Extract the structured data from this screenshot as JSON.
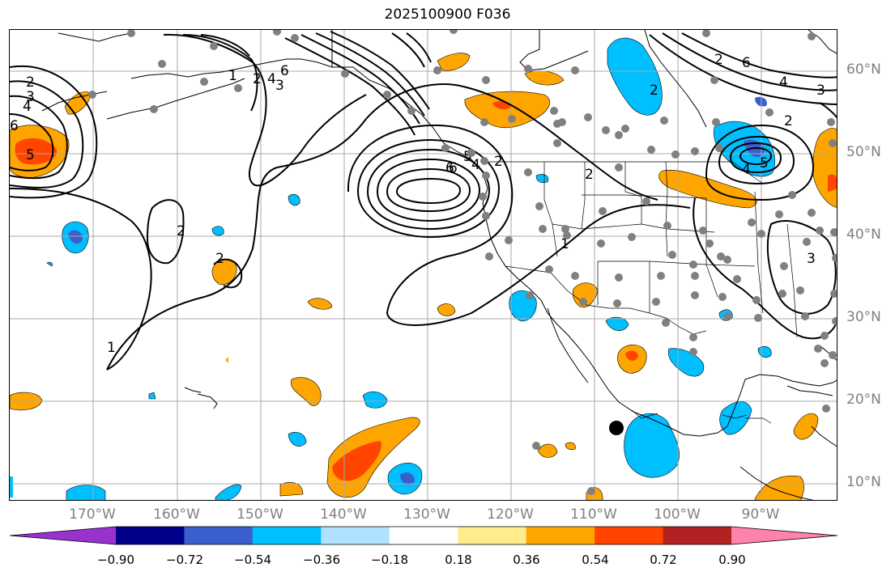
{
  "title": "2025100900 F036",
  "longitude_labels": [
    "170°W",
    "160°W",
    "150°W",
    "140°W",
    "130°W",
    "120°W",
    "110°W",
    "100°W",
    "90°W"
  ],
  "latitude_labels": [
    "60°N",
    "50°N",
    "40°N",
    "30°N",
    "20°N",
    "10°N"
  ],
  "colorbar": {
    "ticks": [
      "−0.90",
      "−0.72",
      "−0.54",
      "−0.36",
      "−0.18",
      "0.18",
      "0.36",
      "0.54",
      "0.72",
      "0.90"
    ],
    "colors": [
      "#9932cc",
      "#00008b",
      "#3a5fcd",
      "#00bfff",
      "#b0e2ff",
      "#ffffff",
      "#ffec8b",
      "#ffa500",
      "#ff4500",
      "#b22222",
      "#ff82ab"
    ]
  },
  "contour_labels": [
    "2",
    "3",
    "4",
    "6",
    "5",
    "2",
    "1",
    "2",
    "1",
    "2",
    "4",
    "6",
    "3",
    "6",
    "5",
    "4",
    "6",
    "2",
    "2",
    "1",
    "2",
    "6",
    "4",
    "3",
    "2",
    "5",
    "4",
    "2",
    "3"
  ],
  "colors": {
    "contour": "#000000",
    "grid": "#a9a9a9",
    "station": "#808080",
    "marker": "#000000"
  }
}
